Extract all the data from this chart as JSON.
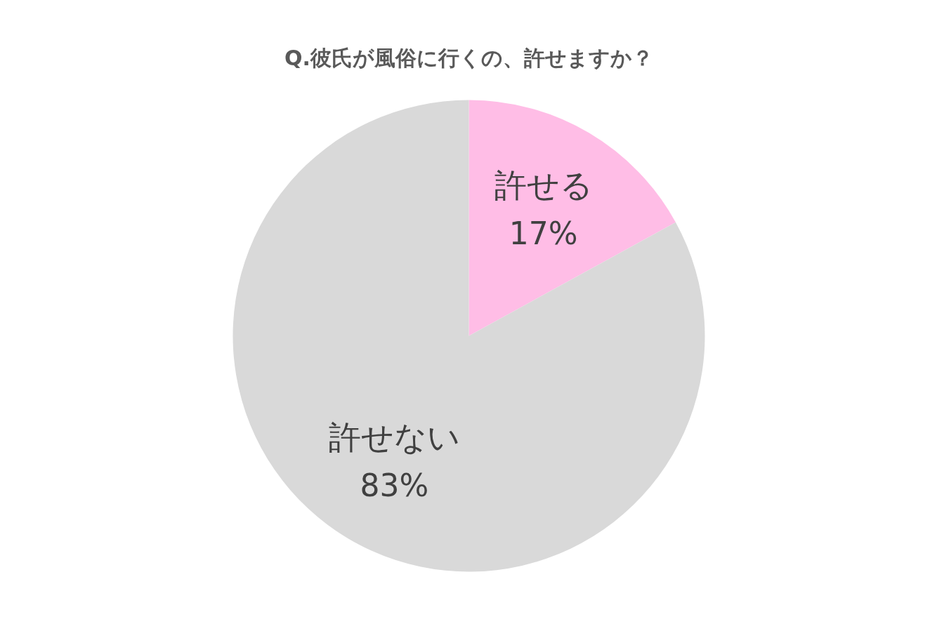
{
  "chart_data": {
    "type": "pie",
    "title": "Q.彼氏が風俗に行くの、許せますか？",
    "categories": [
      "許せる",
      "許せない"
    ],
    "values": [
      17,
      83
    ],
    "colors": [
      "#ffbde6",
      "#d9d9d9"
    ],
    "value_labels": [
      "17%",
      "83%"
    ]
  }
}
